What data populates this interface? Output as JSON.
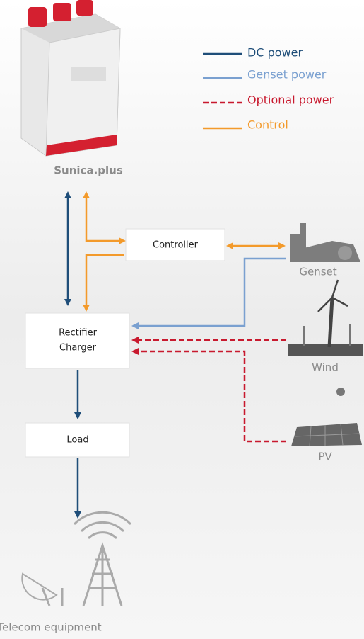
{
  "legend": [
    "DC power",
    "Genset power",
    "Optional power",
    "Control"
  ],
  "nodes": {
    "battery": "Sunica.plus",
    "controller": "Controller",
    "rectifier": [
      "Rectifier",
      "Charger"
    ],
    "load": "Load",
    "genset": "Genset",
    "wind": "Wind",
    "pv": "PV",
    "telecom": "Telecom equipment"
  }
}
